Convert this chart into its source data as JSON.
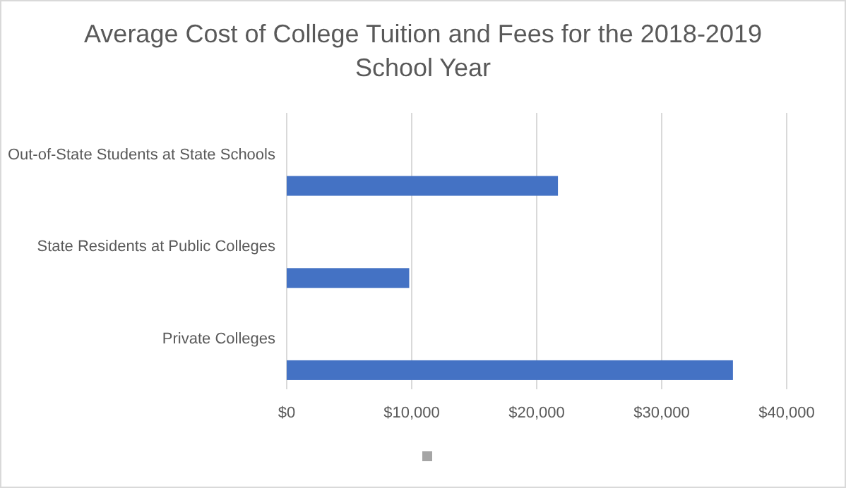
{
  "chart_data": {
    "type": "bar",
    "orientation": "horizontal",
    "title": "Average Cost of College Tuition and Fees for the 2018-2019 School Year",
    "categories": [
      "Out-of-State Students at State Schools",
      "State Residents at Public Colleges",
      "Private Colleges"
    ],
    "values": [
      21700,
      9800,
      35700
    ],
    "color": "#4472c4",
    "xlim": [
      0,
      40000
    ],
    "xticks": [
      {
        "value": 0,
        "label": "$0"
      },
      {
        "value": 10000,
        "label": "$10,000"
      },
      {
        "value": 20000,
        "label": "$20,000"
      },
      {
        "value": 30000,
        "label": "$30,000"
      },
      {
        "value": 40000,
        "label": "$40,000"
      }
    ],
    "grid": "x"
  }
}
